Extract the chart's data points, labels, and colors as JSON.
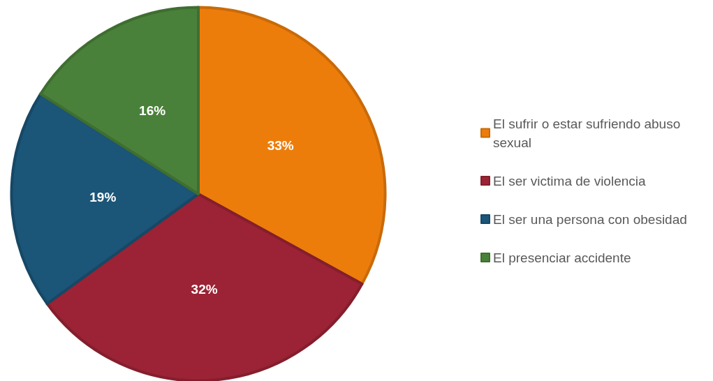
{
  "chart_data": {
    "type": "pie",
    "categories": [
      "El sufrir o estar sufriendo abuso sexual",
      "El ser victima de violencia",
      "El ser una persona con obesidad",
      "El presenciar accidente"
    ],
    "values": [
      33,
      32,
      19,
      16
    ],
    "colors": [
      "#ed7d0b",
      "#9b2335",
      "#1b5577",
      "#4a813a"
    ],
    "value_labels": [
      "33%",
      "32%",
      "19%",
      "16%"
    ],
    "legend": "right"
  }
}
